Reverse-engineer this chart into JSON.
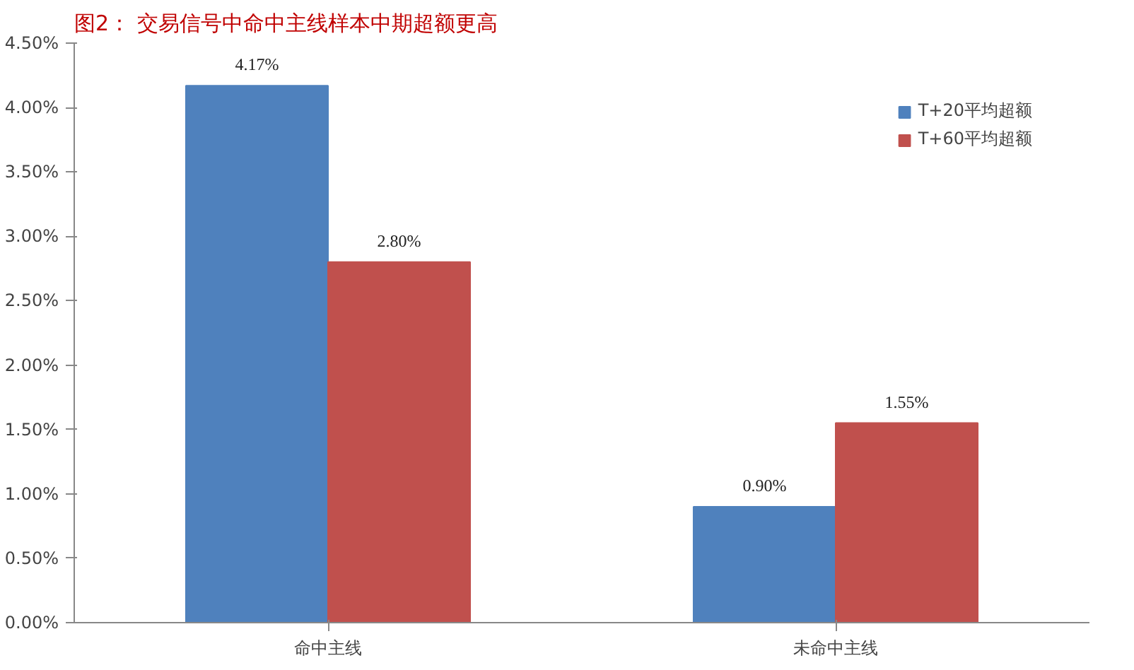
{
  "chart_data": {
    "type": "bar",
    "title": "图2：  交易信号中命中主线样本中期超额更高",
    "categories": [
      "命中主线",
      "未命中主线"
    ],
    "series": [
      {
        "name": "T+20平均超额",
        "color": "#4f81bd",
        "values": [
          4.17,
          0.9
        ],
        "value_labels": [
          "4.17%",
          "0.90%"
        ]
      },
      {
        "name": "T+60平均超额",
        "color": "#c0504d",
        "values": [
          2.8,
          1.55
        ],
        "value_labels": [
          "2.80%",
          "1.55%"
        ]
      }
    ],
    "ylim": [
      0,
      4.5
    ],
    "yticks": [
      {
        "value": 0,
        "label": "0.00%"
      },
      {
        "value": 0.5,
        "label": "0.50%"
      },
      {
        "value": 1,
        "label": "1.00%"
      },
      {
        "value": 1.5,
        "label": "1.50%"
      },
      {
        "value": 2,
        "label": "2.00%"
      },
      {
        "value": 2.5,
        "label": "2.50%"
      },
      {
        "value": 3,
        "label": "3.00%"
      },
      {
        "value": 3.5,
        "label": "3.50%"
      },
      {
        "value": 4,
        "label": "4.00%"
      },
      {
        "value": 4.5,
        "label": "4.50%"
      }
    ],
    "grid": false,
    "legend": "top right"
  }
}
